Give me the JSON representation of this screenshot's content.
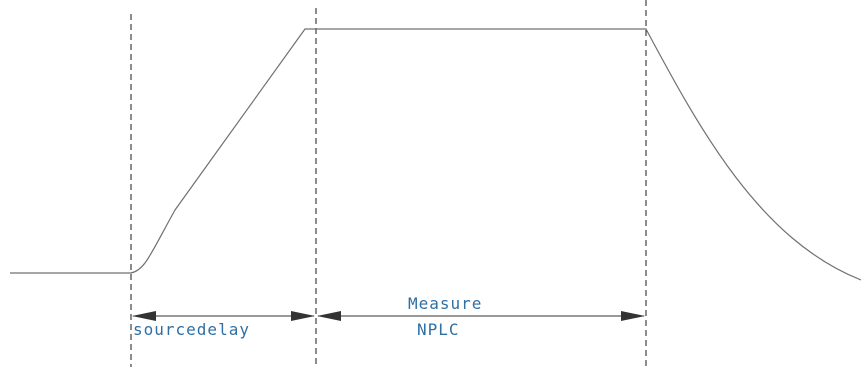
{
  "colors": {
    "waveform": "#707070",
    "guide": "#1a1a1a",
    "arrow": "#333333",
    "label": "#2f6fa3",
    "background": "#ffffff"
  },
  "labels": {
    "source_delay": "sourcedelay",
    "measure_line1": "Measure",
    "measure_line2": "NPLC"
  }
}
